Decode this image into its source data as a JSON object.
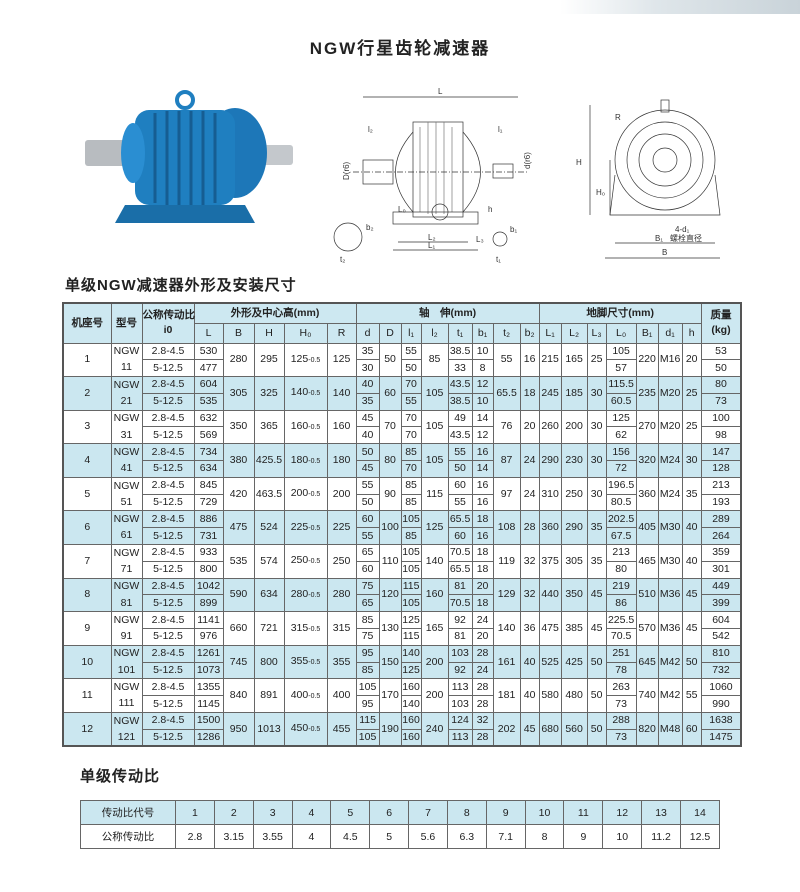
{
  "title": "NGW行星齿轮减速器",
  "section1": "单级NGW减速器外形及安装尺寸",
  "section2": "单级传动比",
  "colors": {
    "motor_blue": "#1f7fc0",
    "table_blue": "#cbe7f0"
  },
  "diagram_labels": {
    "L": "L",
    "l2": "l₂",
    "l1": "l₁",
    "D": "D(r6)",
    "d": "d(r6)",
    "L0": "L₀",
    "h": "h",
    "L2": "L₂",
    "L3": "L₃",
    "L1": "L₁",
    "b2": "b₂",
    "t2": "t₂",
    "b1": "b₁",
    "t1": "t₁",
    "R": "R",
    "H": "H",
    "H0": "H₀",
    "d1": "4-d₁",
    "bolt": "螺栓直径",
    "B1": "B₁",
    "B": "B"
  },
  "table": {
    "head": {
      "seat": "机座号",
      "model": "型号",
      "ratio": "公称传动比",
      "ratio2": "i0",
      "shape": "外形及中心高(mm)",
      "shaft": "轴　伸(mm)",
      "foot": "地脚尺寸(mm)",
      "mass": "质量",
      "mass_unit": "(kg)",
      "cols": [
        "L",
        "B",
        "H",
        "H₀",
        "R",
        "d",
        "D",
        "l₁",
        "l₂",
        "t₁",
        "b₁",
        "t₂",
        "b₂",
        "L₁",
        "L₂",
        "L₃",
        "L₀",
        "B₁",
        "d₁",
        "h"
      ]
    },
    "ratio_ranges": [
      "2.8-4.5",
      "5-12.5"
    ],
    "rows": [
      {
        "no": "1",
        "m1": "NGW",
        "m2": "11",
        "L": [
          "530",
          "477"
        ],
        "B": "280",
        "H": "295",
        "H0": "125",
        "tol": "-0.5",
        "R": "125",
        "d": [
          "35",
          "30"
        ],
        "D": "50",
        "l1": [
          "55",
          "50"
        ],
        "l2": "85",
        "t1": [
          "38.5",
          "33"
        ],
        "b1": [
          "10",
          "8"
        ],
        "t2": "55",
        "b2": "16",
        "L1": "215",
        "L2": "165",
        "L3": "25",
        "L0": [
          "105",
          "57"
        ],
        "B1": "220",
        "d1": "M16",
        "h": "20",
        "kg": [
          "53",
          "50"
        ]
      },
      {
        "no": "2",
        "m1": "NGW",
        "m2": "21",
        "L": [
          "604",
          "535"
        ],
        "B": "305",
        "H": "325",
        "H0": "140",
        "tol": "-0.5",
        "R": "140",
        "d": [
          "40",
          "35"
        ],
        "D": "60",
        "l1": [
          "70",
          "55"
        ],
        "l2": "105",
        "t1": [
          "43.5",
          "38.5"
        ],
        "b1": [
          "12",
          "10"
        ],
        "t2": "65.5",
        "b2": "18",
        "L1": "245",
        "L2": "185",
        "L3": "30",
        "L0": [
          "115.5",
          "60.5"
        ],
        "B1": "235",
        "d1": "M20",
        "h": "25",
        "kg": [
          "80",
          "73"
        ]
      },
      {
        "no": "3",
        "m1": "NGW",
        "m2": "31",
        "L": [
          "632",
          "569"
        ],
        "B": "350",
        "H": "365",
        "H0": "160",
        "tol": "-0.5",
        "R": "160",
        "d": [
          "45",
          "40"
        ],
        "D": "70",
        "l1": [
          "70",
          "70"
        ],
        "l2": "105",
        "t1": [
          "49",
          "43.5"
        ],
        "b1": [
          "14",
          "12"
        ],
        "t2": "76",
        "b2": "20",
        "L1": "260",
        "L2": "200",
        "L3": "30",
        "L0": [
          "125",
          "62"
        ],
        "B1": "270",
        "d1": "M20",
        "h": "25",
        "kg": [
          "100",
          "98"
        ]
      },
      {
        "no": "4",
        "m1": "NGW",
        "m2": "41",
        "L": [
          "734",
          "634"
        ],
        "B": "380",
        "H": "425.5",
        "H0": "180",
        "tol": "-0.5",
        "R": "180",
        "d": [
          "50",
          "45"
        ],
        "D": "80",
        "l1": [
          "85",
          "70"
        ],
        "l2": "105",
        "t1": [
          "55",
          "50"
        ],
        "b1": [
          "16",
          "14"
        ],
        "t2": "87",
        "b2": "24",
        "L1": "290",
        "L2": "230",
        "L3": "30",
        "L0": [
          "156",
          "72"
        ],
        "B1": "320",
        "d1": "M24",
        "h": "30",
        "kg": [
          "147",
          "128"
        ]
      },
      {
        "no": "5",
        "m1": "NGW",
        "m2": "51",
        "L": [
          "845",
          "729"
        ],
        "B": "420",
        "H": "463.5",
        "H0": "200",
        "tol": "-0.5",
        "R": "200",
        "d": [
          "55",
          "50"
        ],
        "D": "90",
        "l1": [
          "85",
          "85"
        ],
        "l2": "115",
        "t1": [
          "60",
          "55"
        ],
        "b1": [
          "16",
          "16"
        ],
        "t2": "97",
        "b2": "24",
        "L1": "310",
        "L2": "250",
        "L3": "30",
        "L0": [
          "196.5",
          "80.5"
        ],
        "B1": "360",
        "d1": "M24",
        "h": "35",
        "kg": [
          "213",
          "193"
        ]
      },
      {
        "no": "6",
        "m1": "NGW",
        "m2": "61",
        "L": [
          "886",
          "731"
        ],
        "B": "475",
        "H": "524",
        "H0": "225",
        "tol": "-0.5",
        "R": "225",
        "d": [
          "60",
          "55"
        ],
        "D": "100",
        "l1": [
          "105",
          "85"
        ],
        "l2": "125",
        "t1": [
          "65.5",
          "60"
        ],
        "b1": [
          "18",
          "16"
        ],
        "t2": "108",
        "b2": "28",
        "L1": "360",
        "L2": "290",
        "L3": "35",
        "L0": [
          "202.5",
          "67.5"
        ],
        "B1": "405",
        "d1": "M30",
        "h": "40",
        "kg": [
          "289",
          "264"
        ]
      },
      {
        "no": "7",
        "m1": "NGW",
        "m2": "71",
        "L": [
          "933",
          "800"
        ],
        "B": "535",
        "H": "574",
        "H0": "250",
        "tol": "-0.5",
        "R": "250",
        "d": [
          "65",
          "60"
        ],
        "D": "110",
        "l1": [
          "105",
          "105"
        ],
        "l2": "140",
        "t1": [
          "70.5",
          "65.5"
        ],
        "b1": [
          "18",
          "18"
        ],
        "t2": "119",
        "b2": "32",
        "L1": "375",
        "L2": "305",
        "L3": "35",
        "L0": [
          "213",
          "80"
        ],
        "B1": "465",
        "d1": "M30",
        "h": "40",
        "kg": [
          "359",
          "301"
        ]
      },
      {
        "no": "8",
        "m1": "NGW",
        "m2": "81",
        "L": [
          "1042",
          "899"
        ],
        "B": "590",
        "H": "634",
        "H0": "280",
        "tol": "-0.5",
        "R": "280",
        "d": [
          "75",
          "65"
        ],
        "D": "120",
        "l1": [
          "115",
          "105"
        ],
        "l2": "160",
        "t1": [
          "81",
          "70.5"
        ],
        "b1": [
          "20",
          "18"
        ],
        "t2": "129",
        "b2": "32",
        "L1": "440",
        "L2": "350",
        "L3": "45",
        "L0": [
          "219",
          "86"
        ],
        "B1": "510",
        "d1": "M36",
        "h": "45",
        "kg": [
          "449",
          "399"
        ]
      },
      {
        "no": "9",
        "m1": "NGW",
        "m2": "91",
        "L": [
          "1141",
          "976"
        ],
        "B": "660",
        "H": "721",
        "H0": "315",
        "tol": "-0.5",
        "R": "315",
        "d": [
          "85",
          "75"
        ],
        "D": "130",
        "l1": [
          "125",
          "115"
        ],
        "l2": "165",
        "t1": [
          "92",
          "81"
        ],
        "b1": [
          "24",
          "20"
        ],
        "t2": "140",
        "b2": "36",
        "L1": "475",
        "L2": "385",
        "L3": "45",
        "L0": [
          "225.5",
          "70.5"
        ],
        "B1": "570",
        "d1": "M36",
        "h": "45",
        "kg": [
          "604",
          "542"
        ]
      },
      {
        "no": "10",
        "m1": "NGW",
        "m2": "101",
        "L": [
          "1261",
          "1073"
        ],
        "B": "745",
        "H": "800",
        "H0": "355",
        "tol": "-0.5",
        "R": "355",
        "d": [
          "95",
          "85"
        ],
        "D": "150",
        "l1": [
          "140",
          "125"
        ],
        "l2": "200",
        "t1": [
          "103",
          "92"
        ],
        "b1": [
          "28",
          "24"
        ],
        "t2": "161",
        "b2": "40",
        "L1": "525",
        "L2": "425",
        "L3": "50",
        "L0": [
          "251",
          "78"
        ],
        "B1": "645",
        "d1": "M42",
        "h": "50",
        "kg": [
          "810",
          "732"
        ]
      },
      {
        "no": "11",
        "m1": "NGW",
        "m2": "111",
        "L": [
          "1355",
          "1145"
        ],
        "B": "840",
        "H": "891",
        "H0": "400",
        "tol": "-0.5",
        "R": "400",
        "d": [
          "105",
          "95"
        ],
        "D": "170",
        "l1": [
          "160",
          "140"
        ],
        "l2": "200",
        "t1": [
          "113",
          "103"
        ],
        "b1": [
          "28",
          "28"
        ],
        "t2": "181",
        "b2": "40",
        "L1": "580",
        "L2": "480",
        "L3": "50",
        "L0": [
          "263",
          "73"
        ],
        "B1": "740",
        "d1": "M42",
        "h": "55",
        "kg": [
          "1060",
          "990"
        ]
      },
      {
        "no": "12",
        "m1": "NGW",
        "m2": "121",
        "L": [
          "1500",
          "1286"
        ],
        "B": "950",
        "H": "1013",
        "H0": "450",
        "tol": "-0.5",
        "R": "455",
        "d": [
          "115",
          "105"
        ],
        "D": "190",
        "l1": [
          "160",
          "160"
        ],
        "l2": "240",
        "t1": [
          "124",
          "113"
        ],
        "b1": [
          "32",
          "28"
        ],
        "t2": "202",
        "b2": "45",
        "L1": "680",
        "L2": "560",
        "L3": "50",
        "L0": [
          "288",
          "73"
        ],
        "B1": "820",
        "d1": "M48",
        "h": "60",
        "kg": [
          "1638",
          "1475"
        ]
      }
    ]
  },
  "ratio_table": {
    "label1": "传动比代号",
    "label2": "公称传动比",
    "codes": [
      "1",
      "2",
      "3",
      "4",
      "5",
      "6",
      "7",
      "8",
      "9",
      "10",
      "11",
      "12",
      "13",
      "14"
    ],
    "values": [
      "2.8",
      "3.15",
      "3.55",
      "4",
      "4.5",
      "5",
      "5.6",
      "6.3",
      "7.1",
      "8",
      "9",
      "10",
      "11.2",
      "12.5"
    ]
  }
}
